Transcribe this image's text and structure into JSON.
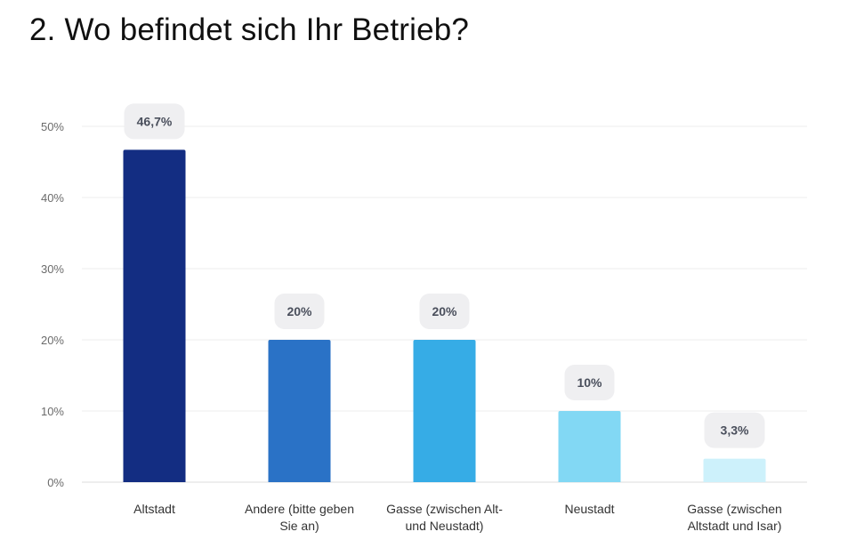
{
  "page": {
    "title": "2. Wo befindet sich Ihr Betrieb?"
  },
  "chart_data": {
    "type": "bar",
    "title": "2. Wo befindet sich Ihr Betrieb?",
    "xlabel": "",
    "ylabel": "",
    "ylim": [
      0,
      50
    ],
    "yticks": [
      0,
      10,
      20,
      30,
      40,
      50
    ],
    "ytick_labels": [
      "0%",
      "10%",
      "20%",
      "30%",
      "40%",
      "50%"
    ],
    "grid": true,
    "categories": [
      [
        "Altstadt"
      ],
      [
        "Andere (bitte geben",
        "Sie an)"
      ],
      [
        "Gasse (zwischen Alt-",
        "und Neustadt)"
      ],
      [
        "Neustadt"
      ],
      [
        "Gasse (zwischen",
        "Altstadt und Isar)"
      ]
    ],
    "values": [
      46.7,
      20,
      20,
      10,
      3.3
    ],
    "value_labels": [
      "46,7%",
      "20%",
      "20%",
      "10%",
      "3,3%"
    ],
    "colors": [
      "#132d82",
      "#2a72c6",
      "#36ace6",
      "#82d8f4",
      "#cdf1fb"
    ]
  }
}
